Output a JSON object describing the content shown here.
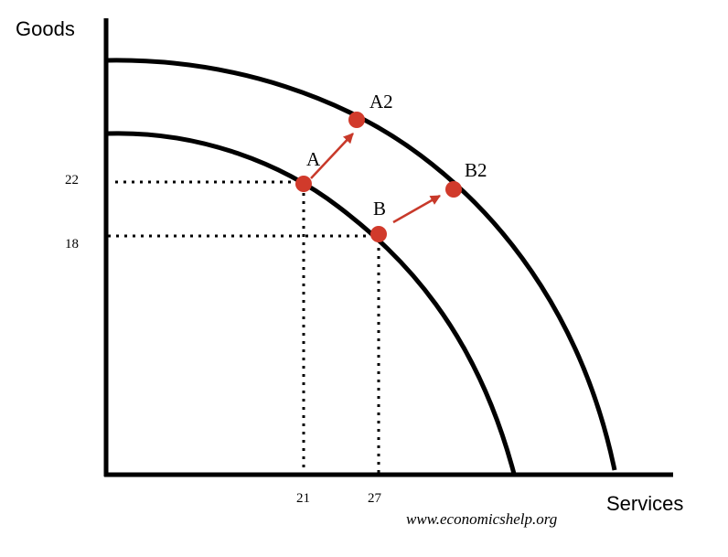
{
  "chart_data": {
    "type": "line",
    "title": "",
    "xlabel": "Services",
    "ylabel": "Goods",
    "x_ticks": [
      "21",
      "27"
    ],
    "y_ticks": [
      "22",
      "18"
    ],
    "series": [
      {
        "curve": "original"
      },
      {
        "curve": "shifted"
      }
    ],
    "points": [
      {
        "label": "A",
        "on": "original"
      },
      {
        "label": "B",
        "on": "original"
      },
      {
        "label": "A2",
        "on": "shifted"
      },
      {
        "label": "B2",
        "on": "shifted"
      }
    ],
    "arrows": [
      {
        "from": "A",
        "to": "A2"
      },
      {
        "from": "B",
        "to": "B2"
      }
    ],
    "grid": false,
    "legend": "none",
    "colors": {
      "curve": "#000000",
      "point": "#d13a2b",
      "arrow": "#c8392a",
      "guide": "#000000"
    }
  },
  "watermark": "www.economicshelp.org"
}
